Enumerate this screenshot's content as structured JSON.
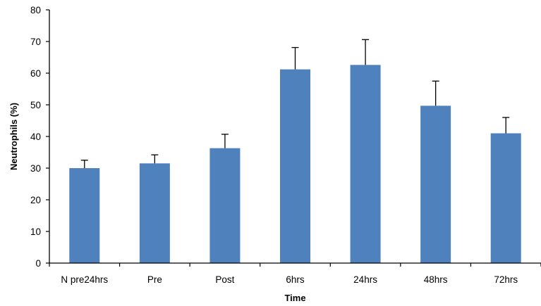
{
  "chart_data": {
    "type": "bar",
    "title": "",
    "xlabel": "Time",
    "ylabel": "Neutrophils (%)",
    "categories": [
      "N pre24hrs",
      "Pre",
      "Post",
      "6hrs",
      "24hrs",
      "48hrs",
      "72hrs"
    ],
    "series": [
      {
        "values": [
          30,
          31.5,
          36.3,
          61.2,
          62.6,
          49.7,
          41
        ],
        "error_upper": [
          2.5,
          2.7,
          4.4,
          6.9,
          8.0,
          7.8,
          5.0
        ],
        "color": "#4F81BD"
      }
    ],
    "ylim": [
      0,
      80
    ],
    "yticks": [
      0,
      10,
      20,
      30,
      40,
      50,
      60,
      70,
      80
    ],
    "grid": false,
    "legend": "none"
  }
}
